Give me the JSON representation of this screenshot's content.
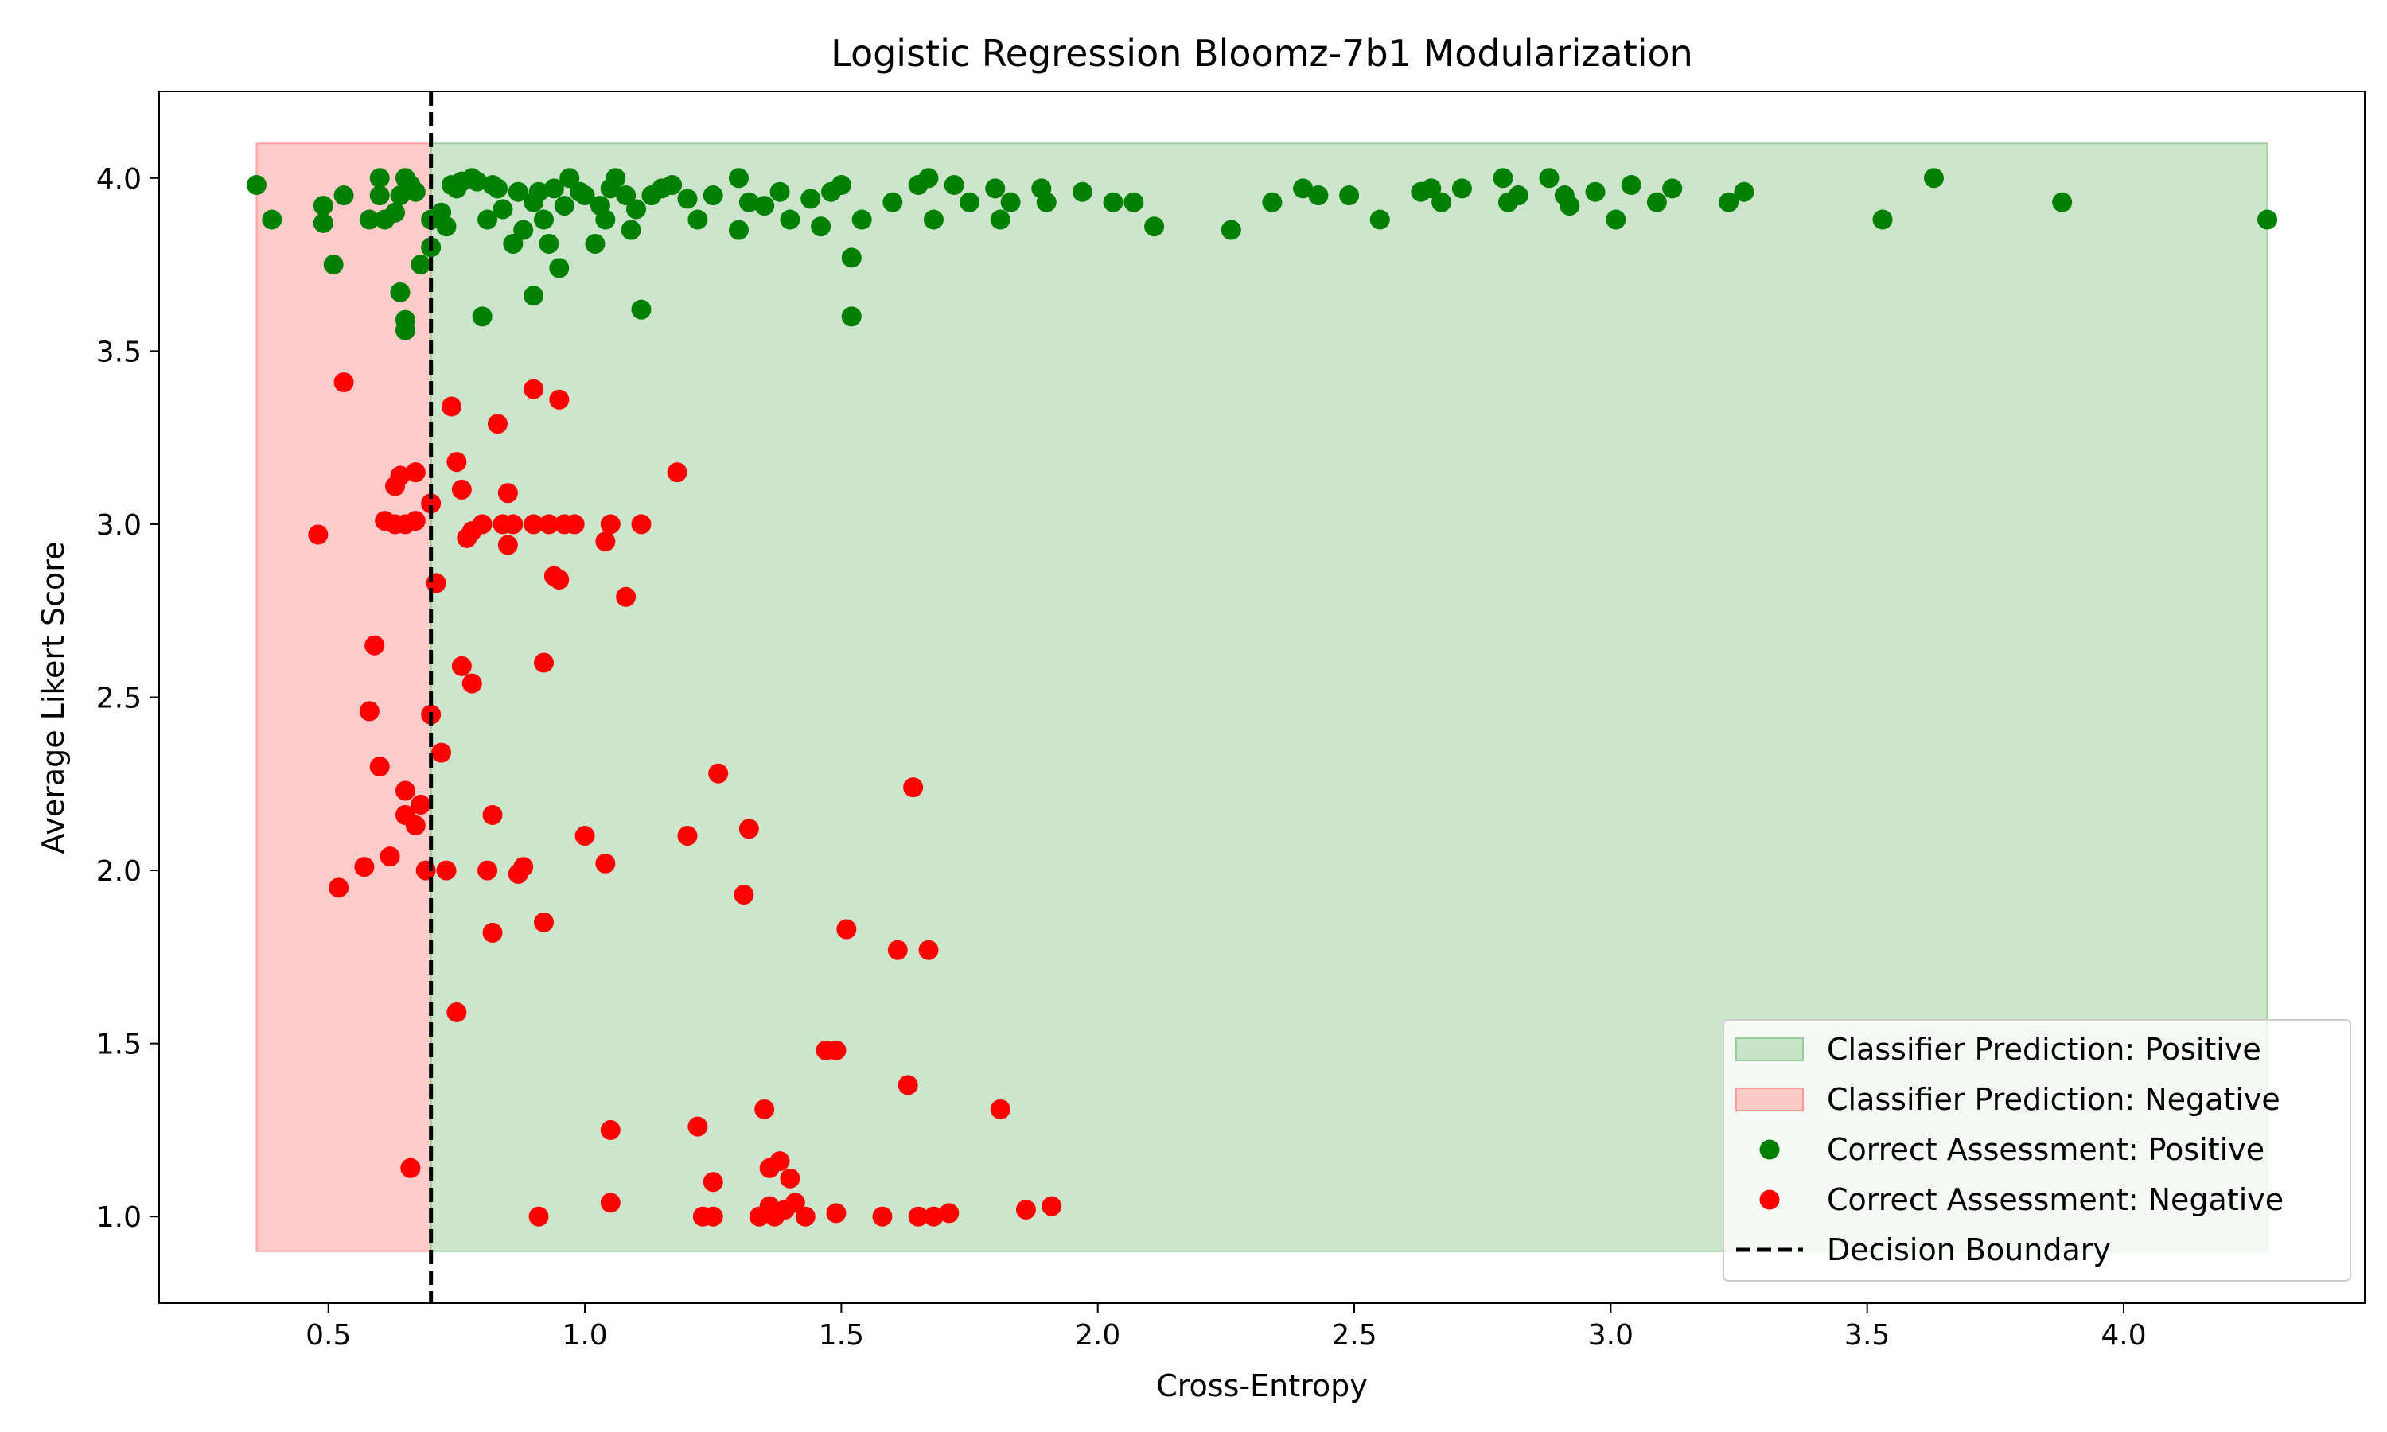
{
  "chart_data": {
    "type": "scatter",
    "title": "Logistic Regression Bloomz-7b1 Modularization",
    "xlabel": "Cross-Entropy",
    "ylabel": "Average Likert Score",
    "xlim": [
      0.17,
      4.47
    ],
    "ylim": [
      0.75,
      4.25
    ],
    "xticks": [
      0.5,
      1.0,
      1.5,
      2.0,
      2.5,
      3.0,
      3.5,
      4.0
    ],
    "xtick_labels": [
      "0.5",
      "1.0",
      "1.5",
      "2.0",
      "2.5",
      "3.0",
      "3.5",
      "4.0"
    ],
    "yticks": [
      1.0,
      1.5,
      2.0,
      2.5,
      3.0,
      3.5,
      4.0
    ],
    "ytick_labels": [
      "1.0",
      "1.5",
      "2.0",
      "2.5",
      "3.0",
      "3.5",
      "4.0"
    ],
    "grid": false,
    "legend_position": "bottom-right",
    "decision_boundary": 0.7,
    "regions": [
      {
        "name": "Classifier Prediction: Negative",
        "x": [
          0.36,
          0.7
        ],
        "y": [
          0.9,
          4.1
        ],
        "color": "#ff9999",
        "opacity": 0.5
      },
      {
        "name": "Classifier Prediction: Positive",
        "x": [
          0.7,
          4.28
        ],
        "y": [
          0.9,
          4.1
        ],
        "color": "#99cc99",
        "opacity": 0.5
      }
    ],
    "series": [
      {
        "name": "Correct Assessment: Positive",
        "color": "#008000",
        "points": [
          [
            0.36,
            3.98
          ],
          [
            0.39,
            3.88
          ],
          [
            0.49,
            3.92
          ],
          [
            0.49,
            3.87
          ],
          [
            0.51,
            3.75
          ],
          [
            0.53,
            3.95
          ],
          [
            0.58,
            3.88
          ],
          [
            0.6,
            4.0
          ],
          [
            0.6,
            3.95
          ],
          [
            0.61,
            3.88
          ],
          [
            0.63,
            3.9
          ],
          [
            0.64,
            3.67
          ],
          [
            0.65,
            3.59
          ],
          [
            0.65,
            3.56
          ],
          [
            0.64,
            3.95
          ],
          [
            0.65,
            4.0
          ],
          [
            0.66,
            3.98
          ],
          [
            0.67,
            3.96
          ],
          [
            0.68,
            3.75
          ],
          [
            0.7,
            3.8
          ],
          [
            0.7,
            3.88
          ],
          [
            0.72,
            3.9
          ],
          [
            0.73,
            3.86
          ],
          [
            0.74,
            3.98
          ],
          [
            0.75,
            3.97
          ],
          [
            0.76,
            3.99
          ],
          [
            0.78,
            4.0
          ],
          [
            0.79,
            3.99
          ],
          [
            0.8,
            3.6
          ],
          [
            0.81,
            3.88
          ],
          [
            0.82,
            3.98
          ],
          [
            0.83,
            3.97
          ],
          [
            0.84,
            3.91
          ],
          [
            0.86,
            3.81
          ],
          [
            0.87,
            3.96
          ],
          [
            0.88,
            3.85
          ],
          [
            0.9,
            3.66
          ],
          [
            0.9,
            3.93
          ],
          [
            0.91,
            3.96
          ],
          [
            0.92,
            3.88
          ],
          [
            0.93,
            3.81
          ],
          [
            0.94,
            3.97
          ],
          [
            0.95,
            3.74
          ],
          [
            0.96,
            3.92
          ],
          [
            0.97,
            4.0
          ],
          [
            0.99,
            3.96
          ],
          [
            1.0,
            3.95
          ],
          [
            1.02,
            3.81
          ],
          [
            1.03,
            3.92
          ],
          [
            1.04,
            3.88
          ],
          [
            1.05,
            3.97
          ],
          [
            1.06,
            4.0
          ],
          [
            1.08,
            3.95
          ],
          [
            1.09,
            3.85
          ],
          [
            1.1,
            3.91
          ],
          [
            1.11,
            3.62
          ],
          [
            1.13,
            3.95
          ],
          [
            1.15,
            3.97
          ],
          [
            1.17,
            3.98
          ],
          [
            1.2,
            3.94
          ],
          [
            1.22,
            3.88
          ],
          [
            1.25,
            3.95
          ],
          [
            1.3,
            4.0
          ],
          [
            1.3,
            3.85
          ],
          [
            1.32,
            3.93
          ],
          [
            1.35,
            3.92
          ],
          [
            1.38,
            3.96
          ],
          [
            1.4,
            3.88
          ],
          [
            1.44,
            3.94
          ],
          [
            1.46,
            3.86
          ],
          [
            1.48,
            3.96
          ],
          [
            1.5,
            3.98
          ],
          [
            1.52,
            3.77
          ],
          [
            1.52,
            3.6
          ],
          [
            1.54,
            3.88
          ],
          [
            1.6,
            3.93
          ],
          [
            1.65,
            3.98
          ],
          [
            1.67,
            4.0
          ],
          [
            1.68,
            3.88
          ],
          [
            1.72,
            3.98
          ],
          [
            1.75,
            3.93
          ],
          [
            1.8,
            3.97
          ],
          [
            1.81,
            3.88
          ],
          [
            1.83,
            3.93
          ],
          [
            1.89,
            3.97
          ],
          [
            1.9,
            3.93
          ],
          [
            1.97,
            3.96
          ],
          [
            2.03,
            3.93
          ],
          [
            2.07,
            3.93
          ],
          [
            2.11,
            3.86
          ],
          [
            2.26,
            3.85
          ],
          [
            2.34,
            3.93
          ],
          [
            2.4,
            3.97
          ],
          [
            2.43,
            3.95
          ],
          [
            2.49,
            3.95
          ],
          [
            2.55,
            3.88
          ],
          [
            2.63,
            3.96
          ],
          [
            2.65,
            3.97
          ],
          [
            2.67,
            3.93
          ],
          [
            2.71,
            3.97
          ],
          [
            2.79,
            4.0
          ],
          [
            2.8,
            3.93
          ],
          [
            2.82,
            3.95
          ],
          [
            2.88,
            4.0
          ],
          [
            2.91,
            3.95
          ],
          [
            2.92,
            3.92
          ],
          [
            2.97,
            3.96
          ],
          [
            3.01,
            3.88
          ],
          [
            3.04,
            3.98
          ],
          [
            3.09,
            3.93
          ],
          [
            3.12,
            3.97
          ],
          [
            3.23,
            3.93
          ],
          [
            3.26,
            3.96
          ],
          [
            3.53,
            3.88
          ],
          [
            3.63,
            4.0
          ],
          [
            3.88,
            3.93
          ],
          [
            4.28,
            3.88
          ]
        ]
      },
      {
        "name": "Correct Assessment: Negative",
        "color": "#ff0000",
        "points": [
          [
            0.48,
            2.97
          ],
          [
            0.52,
            1.95
          ],
          [
            0.53,
            3.41
          ],
          [
            0.57,
            2.01
          ],
          [
            0.58,
            2.46
          ],
          [
            0.59,
            2.65
          ],
          [
            0.6,
            2.3
          ],
          [
            0.61,
            3.01
          ],
          [
            0.62,
            2.04
          ],
          [
            0.63,
            3.11
          ],
          [
            0.63,
            3.0
          ],
          [
            0.64,
            3.14
          ],
          [
            0.65,
            2.23
          ],
          [
            0.65,
            2.16
          ],
          [
            0.65,
            3.0
          ],
          [
            0.66,
            1.14
          ],
          [
            0.67,
            2.13
          ],
          [
            0.67,
            3.01
          ],
          [
            0.67,
            3.15
          ],
          [
            0.68,
            2.19
          ],
          [
            0.69,
            2.0
          ],
          [
            0.7,
            3.06
          ],
          [
            0.7,
            2.45
          ],
          [
            0.71,
            2.83
          ],
          [
            0.72,
            2.34
          ],
          [
            0.73,
            2.0
          ],
          [
            0.74,
            3.34
          ],
          [
            0.75,
            3.18
          ],
          [
            0.75,
            1.59
          ],
          [
            0.76,
            3.1
          ],
          [
            0.76,
            2.59
          ],
          [
            0.77,
            2.96
          ],
          [
            0.78,
            2.54
          ],
          [
            0.78,
            2.98
          ],
          [
            0.8,
            3.0
          ],
          [
            0.81,
            2.0
          ],
          [
            0.82,
            1.82
          ],
          [
            0.82,
            2.16
          ],
          [
            0.83,
            3.29
          ],
          [
            0.84,
            3.0
          ],
          [
            0.85,
            2.94
          ],
          [
            0.85,
            3.09
          ],
          [
            0.86,
            3.0
          ],
          [
            0.87,
            1.99
          ],
          [
            0.88,
            2.01
          ],
          [
            0.9,
            3.0
          ],
          [
            0.9,
            3.39
          ],
          [
            0.91,
            1.0
          ],
          [
            0.92,
            1.85
          ],
          [
            0.92,
            2.6
          ],
          [
            0.93,
            3.0
          ],
          [
            0.94,
            2.85
          ],
          [
            0.95,
            2.84
          ],
          [
            0.95,
            3.36
          ],
          [
            0.96,
            3.0
          ],
          [
            0.98,
            3.0
          ],
          [
            1.0,
            2.1
          ],
          [
            1.04,
            2.02
          ],
          [
            1.04,
            2.95
          ],
          [
            1.05,
            3.0
          ],
          [
            1.05,
            1.04
          ],
          [
            1.05,
            1.25
          ],
          [
            1.08,
            2.79
          ],
          [
            1.11,
            3.0
          ],
          [
            1.18,
            3.15
          ],
          [
            1.2,
            2.1
          ],
          [
            1.22,
            1.26
          ],
          [
            1.23,
            1.0
          ],
          [
            1.25,
            1.0
          ],
          [
            1.25,
            1.1
          ],
          [
            1.26,
            2.28
          ],
          [
            1.31,
            1.93
          ],
          [
            1.32,
            2.12
          ],
          [
            1.34,
            1.0
          ],
          [
            1.35,
            1.31
          ],
          [
            1.36,
            1.03
          ],
          [
            1.36,
            1.14
          ],
          [
            1.37,
            1.0
          ],
          [
            1.38,
            1.16
          ],
          [
            1.39,
            1.02
          ],
          [
            1.4,
            1.11
          ],
          [
            1.41,
            1.04
          ],
          [
            1.43,
            1.0
          ],
          [
            1.47,
            1.48
          ],
          [
            1.49,
            1.48
          ],
          [
            1.49,
            1.01
          ],
          [
            1.51,
            1.83
          ],
          [
            1.58,
            1.0
          ],
          [
            1.61,
            1.77
          ],
          [
            1.63,
            1.38
          ],
          [
            1.64,
            2.24
          ],
          [
            1.65,
            1.0
          ],
          [
            1.67,
            1.77
          ],
          [
            1.68,
            1.0
          ],
          [
            1.71,
            1.01
          ],
          [
            1.81,
            1.31
          ],
          [
            1.86,
            1.02
          ],
          [
            1.91,
            1.03
          ]
        ]
      }
    ],
    "legend": [
      {
        "label": "Classifier Prediction: Positive",
        "kind": "patch",
        "color": "#99cc99"
      },
      {
        "label": "Classifier Prediction: Negative",
        "kind": "patch",
        "color": "#ff9999"
      },
      {
        "label": "Correct Assessment: Positive",
        "kind": "marker",
        "color": "#008000"
      },
      {
        "label": "Correct Assessment: Negative",
        "kind": "marker",
        "color": "#ff0000"
      },
      {
        "label": "Decision Boundary",
        "kind": "dashed-line",
        "color": "#000000"
      }
    ]
  }
}
